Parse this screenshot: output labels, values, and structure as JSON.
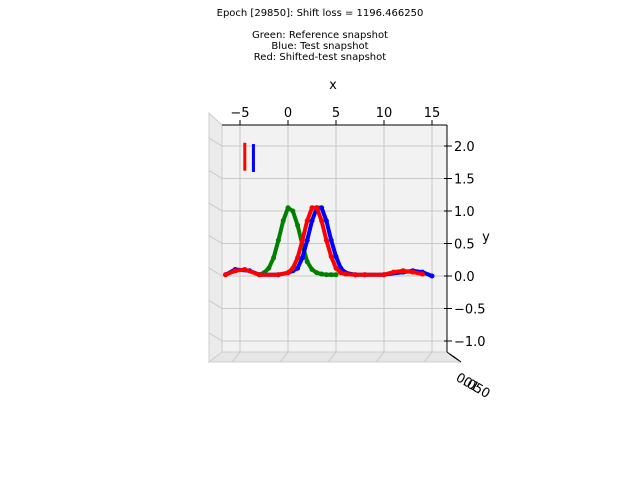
{
  "figure": {
    "title_line1": "Epoch [29850]: Shift loss = 1196.466250",
    "title_line2": "Green: Reference snapshot",
    "title_line3": "Blue: Test snapshot",
    "title_line4": "Red: Shifted-test snapshot"
  },
  "chart_data": {
    "type": "line",
    "projection": "3d",
    "xlabel": "x",
    "ylabel": "y",
    "xlim": [
      -7,
      16
    ],
    "ylim": [
      -1.2,
      2.2
    ],
    "x_ticks": [
      -5,
      0,
      5,
      10,
      15
    ],
    "x_tick_labels": [
      "−5",
      "0",
      "5",
      "10",
      "15"
    ],
    "y_ticks": [
      -1.0,
      -0.5,
      0.0,
      0.5,
      1.0,
      1.5,
      2.0
    ],
    "y_tick_labels": [
      "−1.0",
      "−0.5",
      "0.0",
      "0.5",
      "1.0",
      "1.5",
      "2.0"
    ],
    "z_tick_labels": [
      "0.0",
      "0.5",
      "1.0"
    ],
    "grid": true,
    "colors": {
      "reference": "#008000",
      "test": "#0000ff",
      "shifted": "#ff0000"
    },
    "series": [
      {
        "color": "#008000",
        "x": [
          -3.0,
          -2.5,
          -2.0,
          -1.5,
          -1.0,
          -0.5,
          0.0,
          0.5,
          1.0,
          1.5,
          2.0,
          2.5,
          3.0,
          3.5,
          4.0,
          4.5,
          5.0
        ],
        "y": [
          0.02,
          0.05,
          0.12,
          0.28,
          0.55,
          0.85,
          1.05,
          1.0,
          0.78,
          0.48,
          0.22,
          0.1,
          0.05,
          0.03,
          0.02,
          0.02,
          0.02
        ]
      },
      {
        "color": "#0000ff",
        "x": [
          -6.5,
          -5.5,
          -4.0,
          -3.0,
          -1.0,
          0.0,
          0.5,
          1.0,
          1.5,
          2.0,
          2.5,
          3.0,
          3.5,
          4.0,
          4.5,
          5.0,
          5.5,
          6.0,
          7.0,
          8.0,
          10.0,
          12.0,
          13.0,
          14.0,
          15.0
        ],
        "y": [
          0.02,
          0.1,
          0.08,
          0.02,
          0.02,
          0.05,
          0.08,
          0.12,
          0.28,
          0.55,
          0.85,
          1.05,
          1.05,
          0.85,
          0.55,
          0.3,
          0.12,
          0.05,
          0.02,
          0.02,
          0.02,
          0.06,
          0.08,
          0.06,
          0.0
        ]
      },
      {
        "color": "#ff0000",
        "x": [
          -6.5,
          -5.5,
          -4.5,
          -3.0,
          -1.0,
          0.0,
          0.5,
          1.0,
          1.5,
          2.0,
          2.5,
          3.0,
          3.5,
          4.0,
          4.5,
          5.0,
          5.5,
          6.0,
          7.0,
          8.0,
          10.0,
          11.0,
          12.0,
          13.0,
          14.0
        ],
        "y": [
          0.02,
          0.08,
          0.1,
          0.02,
          0.02,
          0.05,
          0.12,
          0.28,
          0.55,
          0.85,
          1.05,
          1.05,
          0.85,
          0.55,
          0.3,
          0.12,
          0.05,
          0.03,
          0.02,
          0.02,
          0.02,
          0.06,
          0.08,
          0.06,
          0.03
        ]
      }
    ],
    "markers": [
      {
        "color": "#ff0000",
        "x": -4.5,
        "y_bottom": 1.62,
        "y_top": 2.05
      },
      {
        "color": "#0000ff",
        "x": -3.6,
        "y_bottom": 1.6,
        "y_top": 2.03
      }
    ]
  }
}
